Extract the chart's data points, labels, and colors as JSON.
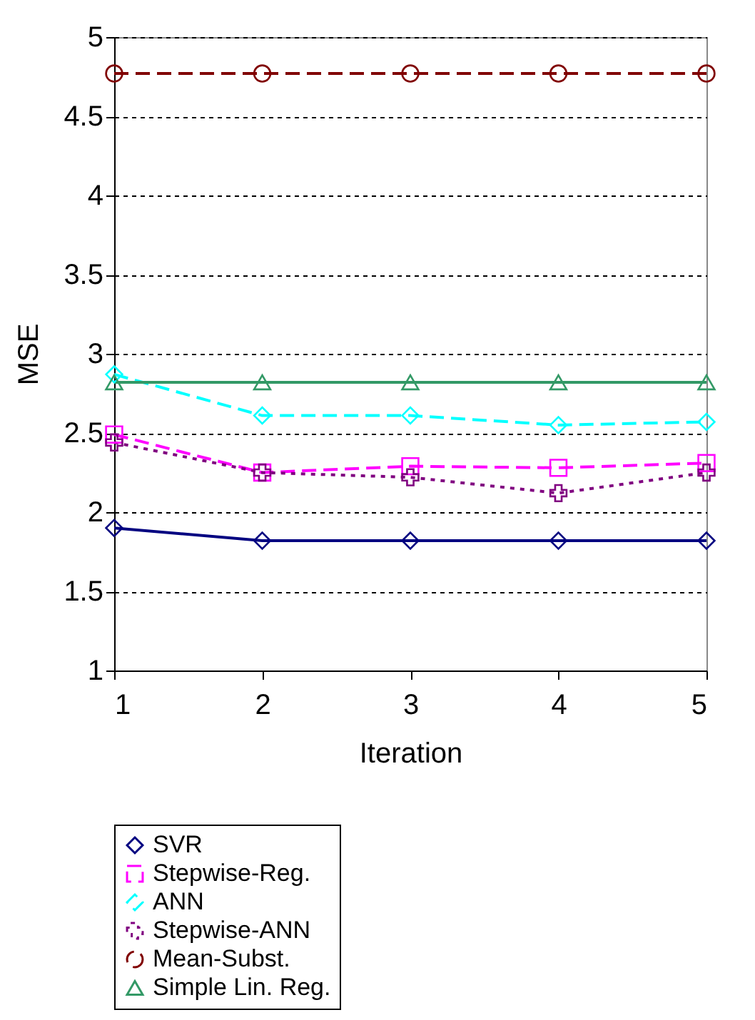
{
  "chart_data": {
    "type": "line",
    "xlabel": "Iteration",
    "ylabel": "MSE",
    "x": [
      1,
      2,
      3,
      4,
      5
    ],
    "xlim": [
      1,
      5
    ],
    "xticks": [
      1,
      2,
      3,
      4,
      5
    ],
    "ylim": [
      1,
      5
    ],
    "yticks": [
      1,
      1.5,
      2,
      2.5,
      3,
      3.5,
      4,
      4.5,
      5
    ],
    "grid": "y",
    "legend": "bottom",
    "series": [
      {
        "name": "SVR",
        "color": "#000080",
        "marker": "diamond",
        "line_style": "solid",
        "values": [
          1.9,
          1.82,
          1.82,
          1.82,
          1.82
        ]
      },
      {
        "name": "Stepwise-Reg.",
        "color": "#ff00ff",
        "marker": "square",
        "line_style": "dashed",
        "values": [
          2.49,
          2.25,
          2.29,
          2.28,
          2.31
        ]
      },
      {
        "name": "ANN",
        "color": "#00ffff",
        "marker": "diamond",
        "line_style": "dashed",
        "values": [
          2.87,
          2.61,
          2.61,
          2.55,
          2.57
        ]
      },
      {
        "name": "Stepwise-ANN",
        "color": "#800080",
        "marker": "cross",
        "line_style": "dotted",
        "values": [
          2.44,
          2.25,
          2.22,
          2.12,
          2.25
        ]
      },
      {
        "name": "Mean-Subst.",
        "color": "#800000",
        "marker": "circle",
        "line_style": "dashed",
        "values": [
          4.77,
          4.77,
          4.77,
          4.77,
          4.77
        ]
      },
      {
        "name": "Simple Lin. Reg.",
        "color": "#339966",
        "marker": "triangle",
        "line_style": "solid",
        "values": [
          2.82,
          2.82,
          2.82,
          2.82,
          2.82
        ]
      }
    ]
  }
}
